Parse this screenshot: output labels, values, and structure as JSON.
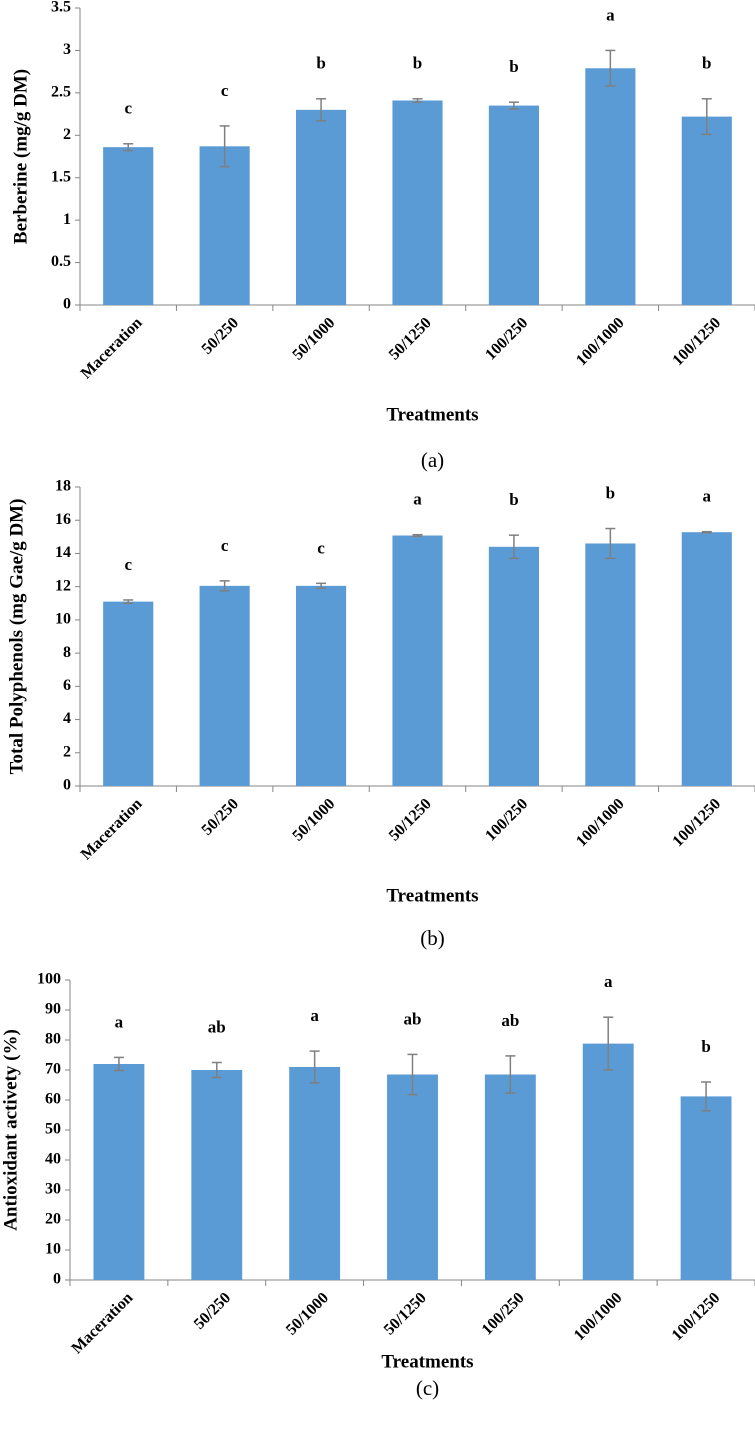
{
  "chart_data": [
    {
      "type": "bar",
      "y_label": "Berberine (mg/g DM)",
      "x_label": "Treatments",
      "caption": "(a)",
      "categories": [
        "Maceration",
        "50/250",
        "50/1000",
        "50/1250",
        "100/250",
        "100/1000",
        "100/1250"
      ],
      "values": [
        1.86,
        1.87,
        2.3,
        2.41,
        2.35,
        2.79,
        2.22
      ],
      "errors": [
        0.04,
        0.24,
        0.13,
        0.02,
        0.04,
        0.21,
        0.21
      ],
      "annotations": [
        "c",
        "c",
        "b",
        "b",
        "b",
        "a",
        "b"
      ],
      "color": "#5b9bd5",
      "ylim": [
        0,
        3.5
      ],
      "yticks": [
        0,
        0.5,
        1,
        1.5,
        2,
        2.5,
        3,
        3.5
      ]
    },
    {
      "type": "bar",
      "y_label": "Total Polyphenols (mg Gae/g DM)",
      "x_label": "Treatments",
      "caption": "(b)",
      "categories": [
        "Maceration",
        "50/250",
        "50/1000",
        "50/1250",
        "100/250",
        "100/1000",
        "100/1250"
      ],
      "values": [
        11.1,
        12.05,
        12.05,
        15.08,
        14.4,
        14.6,
        15.28
      ],
      "errors": [
        0.1,
        0.3,
        0.15,
        0.05,
        0.7,
        0.9,
        0.03
      ],
      "annotations": [
        "c",
        "c",
        "c",
        "a",
        "b",
        "b",
        "a"
      ],
      "color": "#5b9bd5",
      "ylim": [
        0,
        18
      ],
      "yticks": [
        0,
        2,
        4,
        6,
        8,
        10,
        12,
        14,
        16,
        18
      ]
    },
    {
      "type": "bar",
      "y_label": "Antioxidant activety (%)",
      "x_label": "Treatments",
      "caption": "(c)",
      "categories": [
        "Maceration",
        "50/250",
        "50/1000",
        "50/1250",
        "100/250",
        "100/1000",
        "100/1250"
      ],
      "values": [
        72,
        70,
        71,
        68.5,
        68.5,
        78.8,
        61.2
      ],
      "errors": [
        2.2,
        2.5,
        5.3,
        6.7,
        6.2,
        8.8,
        4.8
      ],
      "annotations": [
        "a",
        "ab",
        "a",
        "ab",
        "ab",
        "a",
        "b"
      ],
      "color": "#5b9bd5",
      "ylim": [
        0,
        100
      ],
      "yticks": [
        0,
        10,
        20,
        30,
        40,
        50,
        60,
        70,
        80,
        90,
        100
      ]
    }
  ]
}
